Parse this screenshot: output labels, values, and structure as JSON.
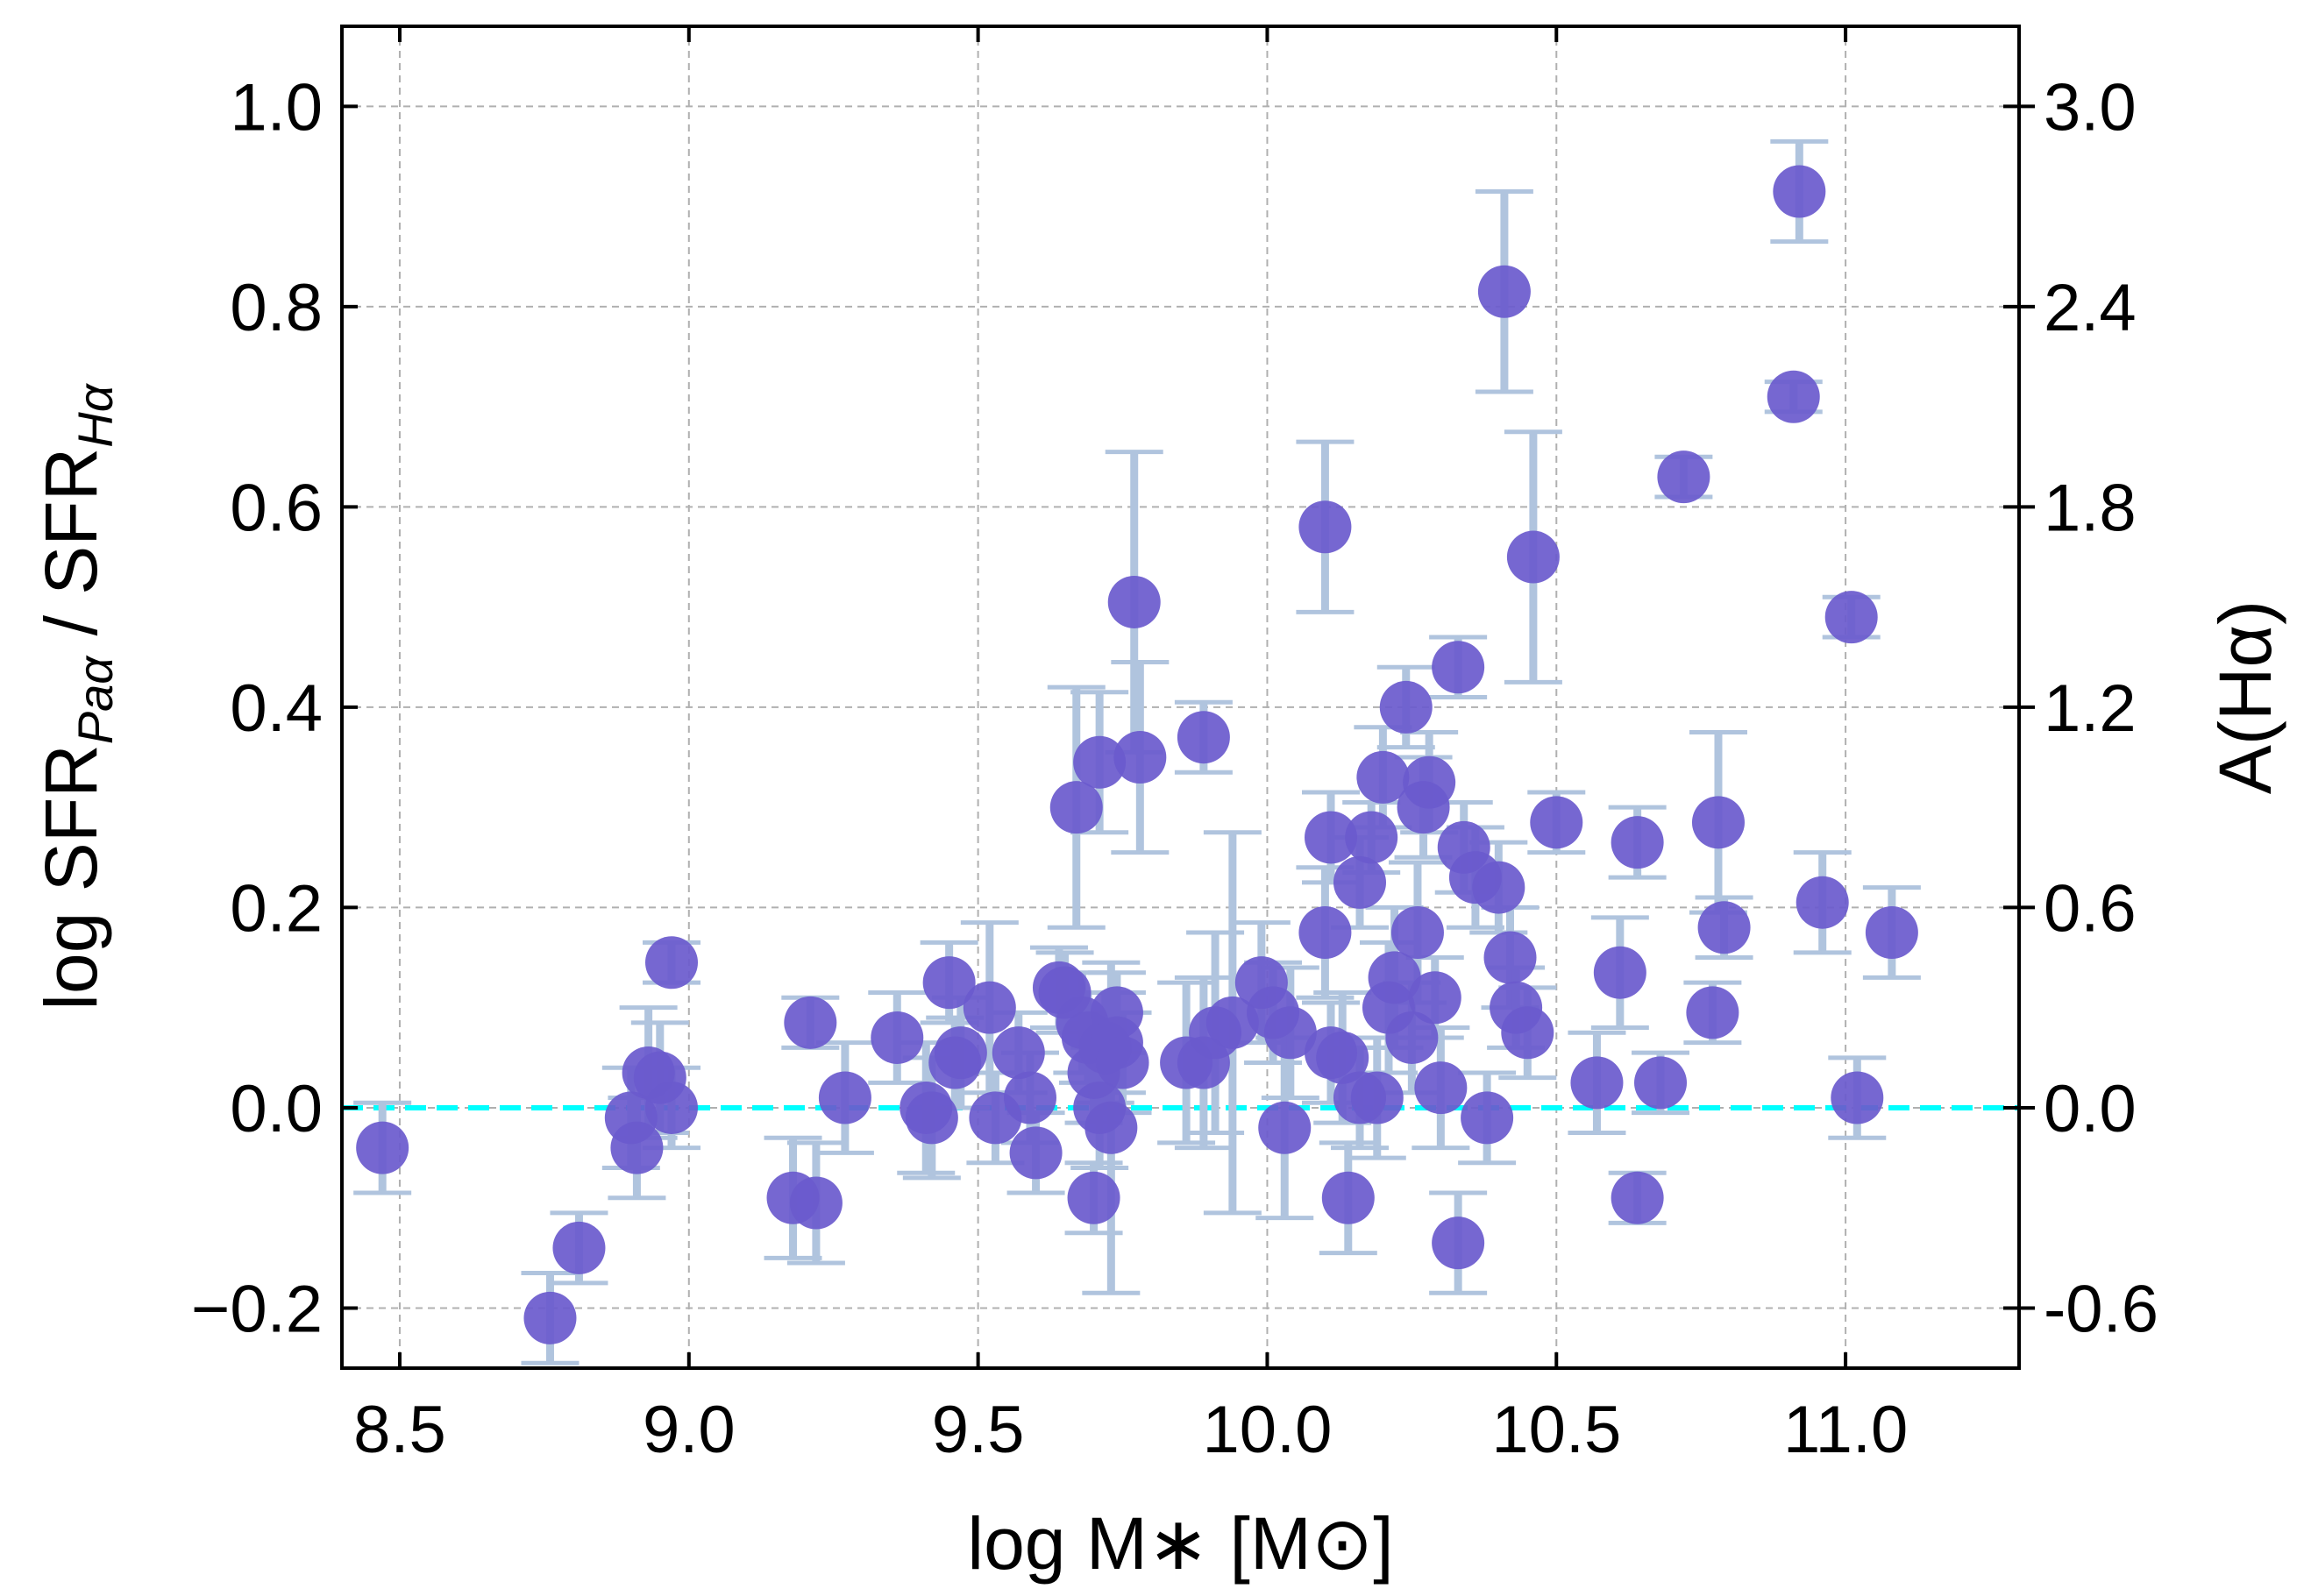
{
  "chart_data": {
    "type": "scatter",
    "xlabel": "log M∗ [M⊙]",
    "ylabel": {
      "prefix": "log SFR",
      "sub1": "Paα",
      "mid": " / SFR",
      "sub2": "Hα"
    },
    "y2label": "A(Hα)",
    "xlim": [
      8.4,
      11.3
    ],
    "ylim": [
      -0.26,
      1.08
    ],
    "grid": true,
    "x_ticks": [
      8.5,
      9.0,
      9.5,
      10.0,
      10.5,
      11.0
    ],
    "x_tick_labels": [
      "8.5",
      "9.0",
      "9.5",
      "10.0",
      "10.5",
      "11.0"
    ],
    "y_ticks": [
      -0.2,
      0.0,
      0.2,
      0.4,
      0.6,
      0.8,
      1.0
    ],
    "y_tick_labels": [
      "−0.2",
      "0.0",
      "0.2",
      "0.4",
      "0.6",
      "0.8",
      "1.0"
    ],
    "y2_ticks": [
      -0.2,
      0.0,
      0.2,
      0.4,
      0.6,
      0.8,
      1.0
    ],
    "y2_tick_labels": [
      "-0.6",
      "0.0",
      "0.6",
      "1.2",
      "1.8",
      "2.4",
      "3.0"
    ],
    "reference_line": {
      "y": 0.0,
      "style": "dashed",
      "color": "#00FFFF"
    },
    "colors": {
      "marker": "#6A5ACD",
      "errorbar": "#B0C4DE",
      "grid": "#b0b0b0"
    },
    "points": [
      {
        "x": 8.47,
        "y": -0.04,
        "err": 0.045
      },
      {
        "x": 8.76,
        "y": -0.21,
        "err": 0.045
      },
      {
        "x": 8.81,
        "y": -0.14,
        "err": 0.035
      },
      {
        "x": 8.9,
        "y": -0.01,
        "err": 0.05
      },
      {
        "x": 8.91,
        "y": -0.04,
        "err": 0.05
      },
      {
        "x": 8.93,
        "y": 0.035,
        "err": 0.065
      },
      {
        "x": 8.95,
        "y": 0.03,
        "err": 0.055
      },
      {
        "x": 8.97,
        "y": 0.0,
        "err": 0.04
      },
      {
        "x": 8.97,
        "y": 0.145,
        "err": 0.02
      },
      {
        "x": 9.18,
        "y": -0.09,
        "err": 0.06
      },
      {
        "x": 9.21,
        "y": 0.085,
        "err": 0.025
      },
      {
        "x": 9.22,
        "y": -0.095,
        "err": 0.06
      },
      {
        "x": 9.27,
        "y": 0.01,
        "err": 0.055
      },
      {
        "x": 9.36,
        "y": 0.07,
        "err": 0.045
      },
      {
        "x": 9.41,
        "y": 0.0,
        "err": 0.065
      },
      {
        "x": 9.42,
        "y": -0.01,
        "err": 0.06
      },
      {
        "x": 9.45,
        "y": 0.125,
        "err": 0.04
      },
      {
        "x": 9.46,
        "y": 0.045,
        "err": 0.045
      },
      {
        "x": 9.47,
        "y": 0.055,
        "err": 0.055
      },
      {
        "x": 9.52,
        "y": 0.1,
        "err": 0.085
      },
      {
        "x": 9.53,
        "y": -0.01,
        "err": 0.045
      },
      {
        "x": 9.57,
        "y": 0.055,
        "err": 0.04
      },
      {
        "x": 9.59,
        "y": 0.01,
        "err": 0.045
      },
      {
        "x": 9.6,
        "y": -0.045,
        "err": 0.04
      },
      {
        "x": 9.64,
        "y": 0.12,
        "err": 0.04
      },
      {
        "x": 9.65,
        "y": 0.115,
        "err": 0.04
      },
      {
        "x": 9.67,
        "y": 0.3,
        "err": 0.12
      },
      {
        "x": 9.68,
        "y": 0.085,
        "err": 0.05
      },
      {
        "x": 9.69,
        "y": 0.07,
        "err": 0.045
      },
      {
        "x": 9.7,
        "y": 0.035,
        "err": 0.05
      },
      {
        "x": 9.7,
        "y": -0.09,
        "err": 0.035
      },
      {
        "x": 9.71,
        "y": 0.345,
        "err": 0.07
      },
      {
        "x": 9.71,
        "y": 0.0,
        "err": 0.06
      },
      {
        "x": 9.72,
        "y": 0.06,
        "err": 0.055
      },
      {
        "x": 9.73,
        "y": -0.02,
        "err": 0.165
      },
      {
        "x": 9.74,
        "y": 0.095,
        "err": 0.04
      },
      {
        "x": 9.74,
        "y": 0.065,
        "err": 0.05
      },
      {
        "x": 9.75,
        "y": 0.045,
        "err": 0.05
      },
      {
        "x": 9.77,
        "y": 0.505,
        "err": 0.15
      },
      {
        "x": 9.78,
        "y": 0.35,
        "err": 0.095
      },
      {
        "x": 9.86,
        "y": 0.045,
        "err": 0.08
      },
      {
        "x": 9.89,
        "y": 0.37,
        "err": 0.035
      },
      {
        "x": 9.89,
        "y": 0.045,
        "err": 0.085
      },
      {
        "x": 9.91,
        "y": 0.075,
        "err": 0.1
      },
      {
        "x": 9.94,
        "y": 0.085,
        "err": 0.19
      },
      {
        "x": 9.99,
        "y": 0.125,
        "err": 0.06
      },
      {
        "x": 10.01,
        "y": 0.095,
        "err": 0.05
      },
      {
        "x": 10.03,
        "y": -0.02,
        "err": 0.09
      },
      {
        "x": 10.04,
        "y": 0.075,
        "err": 0.065
      },
      {
        "x": 10.1,
        "y": 0.175,
        "err": 0.065
      },
      {
        "x": 10.1,
        "y": 0.58,
        "err": 0.085
      },
      {
        "x": 10.11,
        "y": 0.27,
        "err": 0.045
      },
      {
        "x": 10.11,
        "y": 0.055,
        "err": 0.05
      },
      {
        "x": 10.13,
        "y": 0.05,
        "err": 0.065
      },
      {
        "x": 10.14,
        "y": -0.09,
        "err": 0.055
      },
      {
        "x": 10.16,
        "y": 0.01,
        "err": 0.05
      },
      {
        "x": 10.16,
        "y": 0.225,
        "err": 0.045
      },
      {
        "x": 10.18,
        "y": 0.27,
        "err": 0.035
      },
      {
        "x": 10.19,
        "y": 0.01,
        "err": 0.06
      },
      {
        "x": 10.2,
        "y": 0.33,
        "err": 0.05
      },
      {
        "x": 10.21,
        "y": 0.1,
        "err": 0.065
      },
      {
        "x": 10.22,
        "y": 0.13,
        "err": 0.07
      },
      {
        "x": 10.24,
        "y": 0.4,
        "err": 0.04
      },
      {
        "x": 10.25,
        "y": 0.07,
        "err": 0.055
      },
      {
        "x": 10.26,
        "y": 0.175,
        "err": 0.07
      },
      {
        "x": 10.27,
        "y": 0.3,
        "err": 0.05
      },
      {
        "x": 10.28,
        "y": 0.325,
        "err": 0.05
      },
      {
        "x": 10.29,
        "y": 0.11,
        "err": 0.04
      },
      {
        "x": 10.3,
        "y": 0.02,
        "err": 0.06
      },
      {
        "x": 10.33,
        "y": 0.44,
        "err": 0.03
      },
      {
        "x": 10.33,
        "y": -0.135,
        "err": 0.05
      },
      {
        "x": 10.34,
        "y": 0.26,
        "err": 0.045
      },
      {
        "x": 10.36,
        "y": 0.23,
        "err": 0.05
      },
      {
        "x": 10.38,
        "y": -0.01,
        "err": 0.045
      },
      {
        "x": 10.4,
        "y": 0.22,
        "err": 0.045
      },
      {
        "x": 10.41,
        "y": 0.815,
        "err": 0.1
      },
      {
        "x": 10.42,
        "y": 0.15,
        "err": 0.05
      },
      {
        "x": 10.43,
        "y": 0.1,
        "err": 0.04
      },
      {
        "x": 10.45,
        "y": 0.075,
        "err": 0.045
      },
      {
        "x": 10.46,
        "y": 0.55,
        "err": 0.125
      },
      {
        "x": 10.5,
        "y": 0.285,
        "err": 0.03
      },
      {
        "x": 10.57,
        "y": 0.025,
        "err": 0.05
      },
      {
        "x": 10.61,
        "y": 0.135,
        "err": 0.055
      },
      {
        "x": 10.64,
        "y": -0.09,
        "err": 0.025
      },
      {
        "x": 10.64,
        "y": 0.265,
        "err": 0.035
      },
      {
        "x": 10.68,
        "y": 0.025,
        "err": 0.03
      },
      {
        "x": 10.72,
        "y": 0.63,
        "err": 0.02
      },
      {
        "x": 10.77,
        "y": 0.095,
        "err": 0.03
      },
      {
        "x": 10.78,
        "y": 0.285,
        "err": 0.09
      },
      {
        "x": 10.79,
        "y": 0.18,
        "err": 0.03
      },
      {
        "x": 10.91,
        "y": 0.71,
        "err": 0.015
      },
      {
        "x": 10.92,
        "y": 0.915,
        "err": 0.05
      },
      {
        "x": 10.96,
        "y": 0.205,
        "err": 0.05
      },
      {
        "x": 11.01,
        "y": 0.49,
        "err": 0.02
      },
      {
        "x": 11.02,
        "y": 0.01,
        "err": 0.04
      },
      {
        "x": 11.08,
        "y": 0.175,
        "err": 0.045
      }
    ]
  }
}
